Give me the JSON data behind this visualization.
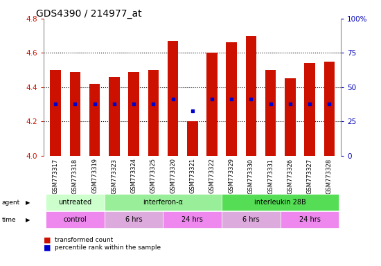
{
  "title": "GDS4390 / 214977_at",
  "samples": [
    "GSM773317",
    "GSM773318",
    "GSM773319",
    "GSM773323",
    "GSM773324",
    "GSM773325",
    "GSM773320",
    "GSM773321",
    "GSM773322",
    "GSM773329",
    "GSM773330",
    "GSM773331",
    "GSM773326",
    "GSM773327",
    "GSM773328"
  ],
  "bar_tops": [
    4.5,
    4.49,
    4.42,
    4.46,
    4.49,
    4.5,
    4.67,
    4.2,
    4.6,
    4.66,
    4.7,
    4.5,
    4.45,
    4.54,
    4.55
  ],
  "bar_base": 4.0,
  "percentile_values": [
    4.3,
    4.3,
    4.3,
    4.3,
    4.3,
    4.3,
    4.33,
    4.26,
    4.33,
    4.33,
    4.33,
    4.3,
    4.3,
    4.3,
    4.3
  ],
  "ylim": [
    4.0,
    4.8
  ],
  "yticks": [
    4.0,
    4.2,
    4.4,
    4.6,
    4.8
  ],
  "right_yticks": [
    0,
    25,
    50,
    75,
    100
  ],
  "right_ylim": [
    0,
    100
  ],
  "bar_color": "#cc1100",
  "percentile_color": "#0000cc",
  "agent_groups": [
    {
      "label": "untreated",
      "start": 0,
      "end": 3,
      "color": "#ccffcc"
    },
    {
      "label": "interferon-α",
      "start": 3,
      "end": 9,
      "color": "#99ee99"
    },
    {
      "label": "interleukin 28B",
      "start": 9,
      "end": 15,
      "color": "#55dd55"
    }
  ],
  "time_groups": [
    {
      "label": "control",
      "start": 0,
      "end": 3,
      "color": "#ee88ee"
    },
    {
      "label": "6 hrs",
      "start": 3,
      "end": 6,
      "color": "#ddaadd"
    },
    {
      "label": "24 hrs",
      "start": 6,
      "end": 9,
      "color": "#ee88ee"
    },
    {
      "label": "6 hrs",
      "start": 9,
      "end": 12,
      "color": "#ddaadd"
    },
    {
      "label": "24 hrs",
      "start": 12,
      "end": 15,
      "color": "#ee88ee"
    }
  ],
  "tick_label_color_left": "#cc1100",
  "tick_label_color_right": "#0000bb",
  "bar_width": 0.55,
  "xlim": [
    -0.6,
    14.6
  ]
}
